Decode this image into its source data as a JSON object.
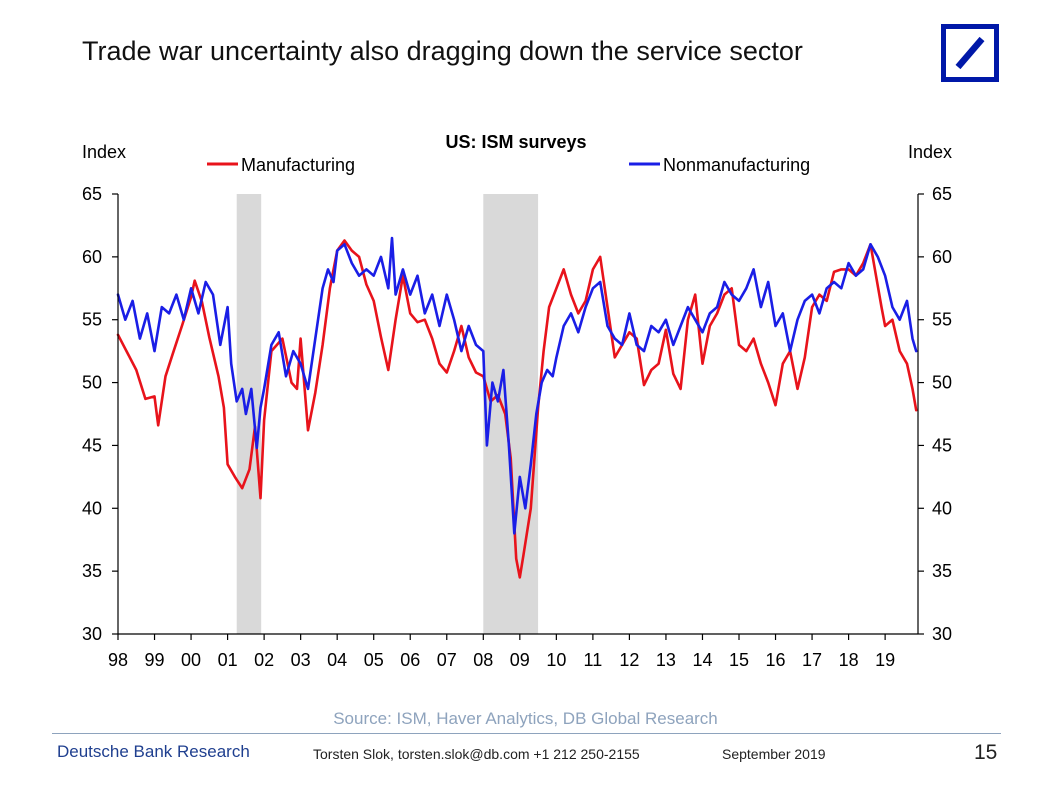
{
  "slide": {
    "title": "Trade war uncertainty also dragging down the service sector",
    "logo_icon": "deutsche-bank-slash-square-icon",
    "brand_color": "#0018a8"
  },
  "chart_data": {
    "type": "line",
    "title": "US: ISM surveys",
    "ylabel_left": "Index",
    "ylabel_right": "Index",
    "ylim": [
      30,
      65
    ],
    "yticks": [
      30,
      35,
      40,
      45,
      50,
      55,
      60,
      65
    ],
    "xlim": [
      1998.0,
      2019.9
    ],
    "xtick_labels": [
      "98",
      "99",
      "00",
      "01",
      "02",
      "03",
      "04",
      "05",
      "06",
      "07",
      "08",
      "09",
      "10",
      "11",
      "12",
      "13",
      "14",
      "15",
      "16",
      "17",
      "18",
      "19"
    ],
    "grid": false,
    "legend": "top",
    "recessions": [
      {
        "start": 2001.25,
        "end": 2001.92
      },
      {
        "start": 2008.0,
        "end": 2009.5
      }
    ],
    "recession_color": "#d9d9d9",
    "series": [
      {
        "name": "Manufacturing",
        "color": "#e8131b",
        "points": [
          [
            1998.0,
            53.8
          ],
          [
            1998.5,
            51.0
          ],
          [
            1998.75,
            48.7
          ],
          [
            1999.0,
            48.9
          ],
          [
            1999.1,
            46.6
          ],
          [
            1999.3,
            50.5
          ],
          [
            1999.5,
            52.3
          ],
          [
            1999.75,
            54.5
          ],
          [
            2000.0,
            56.8
          ],
          [
            2000.1,
            58.1
          ],
          [
            2000.3,
            56.4
          ],
          [
            2000.5,
            53.6
          ],
          [
            2000.75,
            50.5
          ],
          [
            2000.9,
            48.0
          ],
          [
            2001.0,
            43.5
          ],
          [
            2001.2,
            42.5
          ],
          [
            2001.4,
            41.6
          ],
          [
            2001.6,
            43.1
          ],
          [
            2001.75,
            46.5
          ],
          [
            2001.9,
            40.8
          ],
          [
            2002.0,
            47.0
          ],
          [
            2002.2,
            52.5
          ],
          [
            2002.5,
            53.5
          ],
          [
            2002.75,
            50.0
          ],
          [
            2002.9,
            49.5
          ],
          [
            2003.0,
            53.5
          ],
          [
            2003.2,
            46.2
          ],
          [
            2003.4,
            49.2
          ],
          [
            2003.6,
            53.0
          ],
          [
            2003.8,
            57.5
          ],
          [
            2004.0,
            60.5
          ],
          [
            2004.2,
            61.3
          ],
          [
            2004.4,
            60.5
          ],
          [
            2004.6,
            60.0
          ],
          [
            2004.8,
            57.8
          ],
          [
            2005.0,
            56.5
          ],
          [
            2005.2,
            53.6
          ],
          [
            2005.4,
            51.0
          ],
          [
            2005.6,
            55.0
          ],
          [
            2005.8,
            58.5
          ],
          [
            2006.0,
            55.5
          ],
          [
            2006.2,
            54.8
          ],
          [
            2006.4,
            55.0
          ],
          [
            2006.6,
            53.5
          ],
          [
            2006.8,
            51.5
          ],
          [
            2007.0,
            50.8
          ],
          [
            2007.2,
            52.5
          ],
          [
            2007.4,
            54.5
          ],
          [
            2007.6,
            52.0
          ],
          [
            2007.8,
            50.8
          ],
          [
            2008.0,
            50.5
          ],
          [
            2008.2,
            48.5
          ],
          [
            2008.4,
            49.0
          ],
          [
            2008.6,
            47.5
          ],
          [
            2008.75,
            44.0
          ],
          [
            2008.9,
            36.0
          ],
          [
            2009.0,
            34.5
          ],
          [
            2009.1,
            36.3
          ],
          [
            2009.3,
            40.0
          ],
          [
            2009.5,
            48.0
          ],
          [
            2009.65,
            52.5
          ],
          [
            2009.8,
            56.0
          ],
          [
            2010.0,
            57.5
          ],
          [
            2010.2,
            59.0
          ],
          [
            2010.4,
            57.0
          ],
          [
            2010.6,
            55.5
          ],
          [
            2010.8,
            56.5
          ],
          [
            2011.0,
            59.0
          ],
          [
            2011.2,
            60.0
          ],
          [
            2011.4,
            56.0
          ],
          [
            2011.6,
            52.0
          ],
          [
            2011.8,
            53.0
          ],
          [
            2012.0,
            54.0
          ],
          [
            2012.2,
            53.5
          ],
          [
            2012.4,
            49.8
          ],
          [
            2012.6,
            51.0
          ],
          [
            2012.8,
            51.5
          ],
          [
            2013.0,
            54.2
          ],
          [
            2013.2,
            50.7
          ],
          [
            2013.4,
            49.5
          ],
          [
            2013.6,
            55.0
          ],
          [
            2013.8,
            57.0
          ],
          [
            2014.0,
            51.5
          ],
          [
            2014.2,
            54.5
          ],
          [
            2014.4,
            55.5
          ],
          [
            2014.6,
            57.0
          ],
          [
            2014.8,
            57.5
          ],
          [
            2015.0,
            53.0
          ],
          [
            2015.2,
            52.5
          ],
          [
            2015.4,
            53.5
          ],
          [
            2015.6,
            51.5
          ],
          [
            2015.8,
            50.0
          ],
          [
            2016.0,
            48.2
          ],
          [
            2016.2,
            51.5
          ],
          [
            2016.4,
            52.5
          ],
          [
            2016.6,
            49.5
          ],
          [
            2016.8,
            52.0
          ],
          [
            2017.0,
            56.0
          ],
          [
            2017.2,
            57.0
          ],
          [
            2017.4,
            56.5
          ],
          [
            2017.6,
            58.8
          ],
          [
            2017.8,
            59.0
          ],
          [
            2018.0,
            59.0
          ],
          [
            2018.2,
            58.5
          ],
          [
            2018.4,
            59.5
          ],
          [
            2018.6,
            61.0
          ],
          [
            2018.75,
            58.5
          ],
          [
            2018.9,
            56.0
          ],
          [
            2019.0,
            54.5
          ],
          [
            2019.2,
            55.0
          ],
          [
            2019.4,
            52.5
          ],
          [
            2019.6,
            51.5
          ],
          [
            2019.75,
            49.5
          ],
          [
            2019.85,
            47.8
          ]
        ]
      },
      {
        "name": "Nonmanufacturing",
        "color": "#1a1ee6",
        "points": [
          [
            1998.0,
            57.0
          ],
          [
            1998.2,
            55.0
          ],
          [
            1998.4,
            56.5
          ],
          [
            1998.6,
            53.5
          ],
          [
            1998.8,
            55.5
          ],
          [
            1999.0,
            52.5
          ],
          [
            1999.2,
            56.0
          ],
          [
            1999.4,
            55.5
          ],
          [
            1999.6,
            57.0
          ],
          [
            1999.8,
            55.0
          ],
          [
            2000.0,
            57.5
          ],
          [
            2000.2,
            55.5
          ],
          [
            2000.4,
            58.0
          ],
          [
            2000.6,
            57.0
          ],
          [
            2000.8,
            53.0
          ],
          [
            2001.0,
            56.0
          ],
          [
            2001.1,
            51.5
          ],
          [
            2001.25,
            48.5
          ],
          [
            2001.4,
            49.5
          ],
          [
            2001.5,
            47.5
          ],
          [
            2001.65,
            49.5
          ],
          [
            2001.8,
            44.8
          ],
          [
            2001.9,
            48.0
          ],
          [
            2002.0,
            49.5
          ],
          [
            2002.2,
            53.0
          ],
          [
            2002.4,
            54.0
          ],
          [
            2002.6,
            50.5
          ],
          [
            2002.8,
            52.5
          ],
          [
            2003.0,
            51.5
          ],
          [
            2003.2,
            49.5
          ],
          [
            2003.4,
            53.5
          ],
          [
            2003.6,
            57.5
          ],
          [
            2003.75,
            59.0
          ],
          [
            2003.9,
            58.0
          ],
          [
            2004.0,
            60.5
          ],
          [
            2004.2,
            61.0
          ],
          [
            2004.4,
            59.5
          ],
          [
            2004.6,
            58.5
          ],
          [
            2004.8,
            59.0
          ],
          [
            2005.0,
            58.5
          ],
          [
            2005.2,
            60.0
          ],
          [
            2005.4,
            57.5
          ],
          [
            2005.5,
            61.5
          ],
          [
            2005.6,
            57.0
          ],
          [
            2005.8,
            59.0
          ],
          [
            2006.0,
            57.0
          ],
          [
            2006.2,
            58.5
          ],
          [
            2006.4,
            55.5
          ],
          [
            2006.6,
            57.0
          ],
          [
            2006.8,
            54.5
          ],
          [
            2007.0,
            57.0
          ],
          [
            2007.2,
            55.0
          ],
          [
            2007.4,
            52.5
          ],
          [
            2007.6,
            54.5
          ],
          [
            2007.8,
            53.0
          ],
          [
            2008.0,
            52.5
          ],
          [
            2008.1,
            45.0
          ],
          [
            2008.25,
            50.0
          ],
          [
            2008.4,
            48.5
          ],
          [
            2008.55,
            51.0
          ],
          [
            2008.7,
            45.0
          ],
          [
            2008.85,
            38.0
          ],
          [
            2009.0,
            42.5
          ],
          [
            2009.15,
            40.0
          ],
          [
            2009.3,
            43.5
          ],
          [
            2009.45,
            47.5
          ],
          [
            2009.6,
            50.0
          ],
          [
            2009.75,
            51.0
          ],
          [
            2009.9,
            50.5
          ],
          [
            2010.0,
            52.0
          ],
          [
            2010.2,
            54.5
          ],
          [
            2010.4,
            55.5
          ],
          [
            2010.6,
            54.0
          ],
          [
            2010.8,
            56.0
          ],
          [
            2011.0,
            57.5
          ],
          [
            2011.2,
            58.0
          ],
          [
            2011.4,
            54.5
          ],
          [
            2011.6,
            53.5
          ],
          [
            2011.8,
            53.0
          ],
          [
            2012.0,
            55.5
          ],
          [
            2012.2,
            53.0
          ],
          [
            2012.4,
            52.5
          ],
          [
            2012.6,
            54.5
          ],
          [
            2012.8,
            54.0
          ],
          [
            2013.0,
            55.0
          ],
          [
            2013.2,
            53.0
          ],
          [
            2013.4,
            54.5
          ],
          [
            2013.6,
            56.0
          ],
          [
            2013.8,
            55.0
          ],
          [
            2014.0,
            54.0
          ],
          [
            2014.2,
            55.5
          ],
          [
            2014.4,
            56.0
          ],
          [
            2014.6,
            58.0
          ],
          [
            2014.8,
            57.0
          ],
          [
            2015.0,
            56.5
          ],
          [
            2015.2,
            57.5
          ],
          [
            2015.4,
            59.0
          ],
          [
            2015.6,
            56.0
          ],
          [
            2015.8,
            58.0
          ],
          [
            2016.0,
            54.5
          ],
          [
            2016.2,
            55.5
          ],
          [
            2016.4,
            52.5
          ],
          [
            2016.6,
            55.0
          ],
          [
            2016.8,
            56.5
          ],
          [
            2017.0,
            57.0
          ],
          [
            2017.2,
            55.5
          ],
          [
            2017.4,
            57.5
          ],
          [
            2017.6,
            58.0
          ],
          [
            2017.8,
            57.5
          ],
          [
            2018.0,
            59.5
          ],
          [
            2018.2,
            58.5
          ],
          [
            2018.4,
            59.0
          ],
          [
            2018.6,
            61.0
          ],
          [
            2018.8,
            60.0
          ],
          [
            2019.0,
            58.5
          ],
          [
            2019.2,
            56.0
          ],
          [
            2019.4,
            55.0
          ],
          [
            2019.6,
            56.5
          ],
          [
            2019.75,
            53.5
          ],
          [
            2019.85,
            52.5
          ]
        ]
      }
    ]
  },
  "source": "Source: ISM, Haver Analytics, DB Global Research",
  "footer": {
    "company": "Deutsche Bank Research",
    "author": "Torsten Slok, torsten.slok@db.com  +1 212 250-2155",
    "date": "September 2019",
    "page": "15"
  }
}
